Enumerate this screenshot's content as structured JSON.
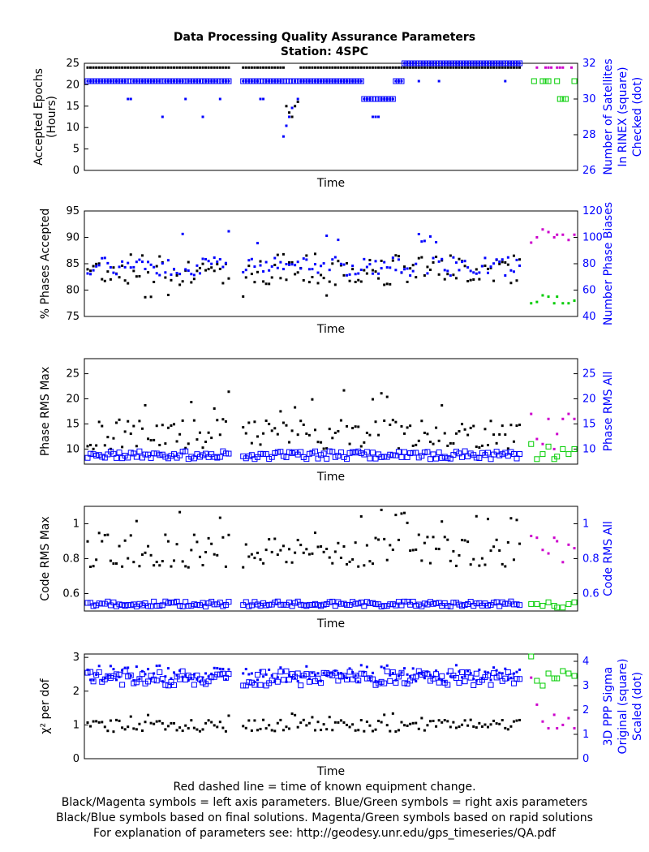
{
  "header": {
    "title": "Data Processing Quality Assurance Parameters",
    "subtitle": "Station: 4SPC"
  },
  "footer": {
    "line1": "Red dashed line = time of known equipment change.",
    "line2": "Black/Magenta symbols = left axis parameters. Blue/Green symbols = right axis parameters",
    "line3": "Black/Blue symbols based on final solutions.  Magenta/Green symbols based on rapid solutions",
    "line4": "For explanation of parameters see: http://geodesy.unr.edu/gps_timeseries/QA.pdf"
  },
  "colors": {
    "final_left": "#000000",
    "final_right": "#0000ff",
    "rapid_left": "#cc00cc",
    "rapid_right": "#00cc00"
  },
  "chart_data": [
    {
      "type": "scatter",
      "id": "epochs",
      "xlabel": "Time",
      "ylabel_left": [
        "Accepted Epochs",
        "(Hours)"
      ],
      "ylabel_right": [
        "Number of Satellites",
        "In RINEX (square)",
        "Checked (dot)"
      ],
      "ylim_left": [
        0,
        25
      ],
      "yticks_left": [
        0,
        5,
        10,
        15,
        20,
        25
      ],
      "ylim_right": [
        26,
        32
      ],
      "yticks_right": [
        26,
        28,
        30,
        32
      ],
      "gaps": [
        [
          50,
          53
        ]
      ],
      "series": [
        {
          "role": "final_left",
          "marker": "dot",
          "base": 24,
          "jitter": 0,
          "outliers": [
            [
              69,
              15
            ],
            [
              70,
              13.5
            ],
            [
              71,
              12.5
            ],
            [
              72,
              15
            ],
            [
              73,
              16
            ]
          ]
        },
        {
          "role": "final_right_square",
          "marker": "square",
          "axis": "right",
          "base": 31,
          "segments": [
            [
              0,
              49,
              31
            ],
            [
              54,
              95,
              31
            ],
            [
              96,
              106,
              30
            ],
            [
              107,
              109,
              31
            ],
            [
              110,
              150,
              32
            ]
          ]
        },
        {
          "role": "final_right_dot",
          "marker": "dot",
          "axis": "right",
          "base": 31,
          "segments": [
            [
              0,
              49,
              31
            ],
            [
              54,
              95,
              31
            ],
            [
              96,
              106,
              30
            ],
            [
              107,
              109,
              31
            ],
            [
              110,
              150,
              32
            ]
          ],
          "outliers": [
            [
              14,
              30
            ],
            [
              15,
              30
            ],
            [
              26,
              29
            ],
            [
              34,
              30
            ],
            [
              40,
              29
            ],
            [
              46,
              30
            ],
            [
              60,
              30
            ],
            [
              61,
              30
            ],
            [
              68,
              27.9
            ],
            [
              69,
              28.5
            ],
            [
              70,
              29
            ],
            [
              71,
              29.5
            ],
            [
              73,
              30
            ],
            [
              99,
              29
            ],
            [
              100,
              29
            ],
            [
              101,
              29
            ],
            [
              115,
              31
            ],
            [
              122,
              31
            ],
            [
              145,
              31
            ]
          ]
        },
        {
          "role": "rapid_left",
          "marker": "dot",
          "x": [
            156,
            159,
            160,
            161,
            163,
            164,
            165,
            168
          ],
          "y": [
            24,
            24,
            24,
            24,
            24,
            24,
            24,
            24
          ]
        },
        {
          "role": "rapid_right_square",
          "marker": "square",
          "axis": "right",
          "x": [
            155,
            158,
            159,
            160,
            163,
            164,
            165,
            166,
            169
          ],
          "y": [
            31,
            31,
            31,
            31,
            31,
            30,
            30,
            30,
            31
          ]
        }
      ]
    },
    {
      "type": "scatter",
      "id": "phases",
      "xlabel": "Time",
      "ylabel_left": [
        "% Phases Accepted"
      ],
      "ylabel_right": [
        "Number Phase Biases"
      ],
      "ylim_left": [
        75,
        95
      ],
      "yticks_left": [
        75,
        80,
        85,
        90,
        95
      ],
      "ylim_right": [
        40,
        120
      ],
      "yticks_right": [
        40,
        60,
        80,
        100,
        120
      ],
      "rapid_left_y": [
        89,
        90,
        91.5,
        91,
        90,
        90.5,
        90.5,
        89.5,
        90.5
      ],
      "rapid_right_y": [
        50,
        51,
        56,
        55,
        50,
        55,
        50,
        50,
        52
      ]
    },
    {
      "type": "scatter",
      "id": "phase_rms",
      "xlabel": "Time",
      "ylabel_left": [
        "Phase RMS Max"
      ],
      "ylabel_right": [
        "Phase RMS All"
      ],
      "ylim_left": [
        7,
        28
      ],
      "yticks_left": [
        10,
        15,
        20,
        25
      ],
      "ylim_right": [
        7,
        28
      ],
      "yticks_right": [
        10,
        15,
        20,
        25
      ],
      "rapid_left_y": [
        17,
        12,
        11,
        16,
        10,
        13,
        16,
        17,
        16
      ],
      "rapid_right_y": [
        11,
        8,
        9,
        10.5,
        8,
        8.5,
        10,
        9,
        10
      ]
    },
    {
      "type": "scatter",
      "id": "code_rms",
      "xlabel": "Time",
      "ylabel_left": [
        "Code RMS Max"
      ],
      "ylabel_right": [
        "Code RMS All"
      ],
      "ylim_left": [
        0.5,
        1.1
      ],
      "yticks_left": [
        0.6,
        0.8,
        1
      ],
      "ylim_right": [
        0.5,
        1.1
      ],
      "yticks_right": [
        0.6,
        0.8,
        1
      ],
      "rapid_left_y": [
        0.93,
        0.92,
        0.85,
        0.83,
        0.92,
        0.9,
        0.78,
        0.88,
        0.86
      ],
      "rapid_right_y": [
        0.54,
        0.54,
        0.53,
        0.55,
        0.53,
        0.52,
        0.52,
        0.54,
        0.55
      ]
    },
    {
      "type": "scatter",
      "id": "chi2",
      "xlabel": "Time",
      "ylabel_left": [
        "χ² per dof"
      ],
      "ylabel_right": [
        "3D PPP Sigma",
        "Original (square)",
        "Scaled (dot)"
      ],
      "ylim_left": [
        0,
        3.1
      ],
      "yticks_left": [
        0,
        1,
        2,
        3
      ],
      "ylim_right": [
        0,
        4.3
      ],
      "yticks_right": [
        0,
        1,
        2,
        3,
        4
      ],
      "rapid_left_y": [
        2.4,
        1.6,
        1.1,
        0.9,
        1.3,
        0.9,
        1,
        1.2,
        0.9
      ],
      "rapid_right_y": [
        4.2,
        3.2,
        3.0,
        3.5,
        3.3,
        3.3,
        3.6,
        3.5,
        3.4
      ]
    }
  ]
}
